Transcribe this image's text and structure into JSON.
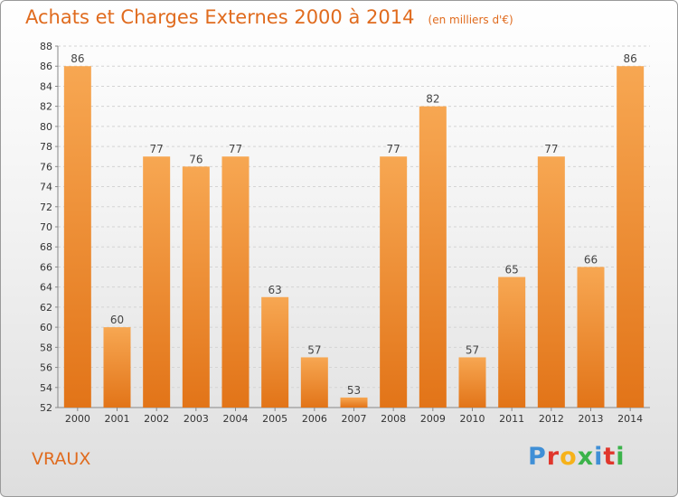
{
  "header": {
    "title": "Achats et Charges Externes 2000 à 2014",
    "unit": "(en milliers d'€)"
  },
  "footer": {
    "commune": "VRAUX",
    "logo_text": "Proxiti"
  },
  "colors": {
    "accent": "#e06b1e",
    "bar_top": "#f7a752",
    "bar_bottom": "#e27418",
    "logo_letters": [
      "#3f8fd6",
      "#e0362c",
      "#f6b21a",
      "#3bb34a",
      "#3f8fd6",
      "#e0362c",
      "#3bb34a"
    ]
  },
  "chart_data": {
    "type": "bar",
    "title": "Achats et Charges Externes 2000 à 2014",
    "subtitle": "(en milliers d'€)",
    "xlabel": "",
    "ylabel": "",
    "categories": [
      "2000",
      "2001",
      "2002",
      "2003",
      "2004",
      "2005",
      "2006",
      "2007",
      "2008",
      "2009",
      "2010",
      "2011",
      "2012",
      "2013",
      "2014"
    ],
    "values": [
      86,
      60,
      77,
      76,
      77,
      63,
      57,
      53,
      77,
      82,
      57,
      65,
      77,
      66,
      86
    ],
    "ylim": [
      52,
      88
    ],
    "yticks": [
      52,
      54,
      56,
      58,
      60,
      62,
      64,
      66,
      68,
      70,
      72,
      74,
      76,
      78,
      80,
      82,
      84,
      86,
      88
    ],
    "grid": true
  }
}
